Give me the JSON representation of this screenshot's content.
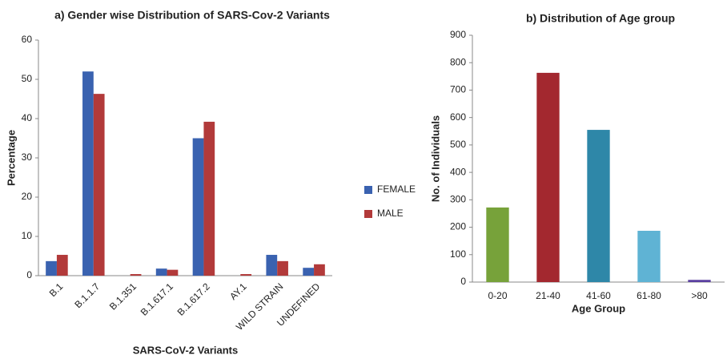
{
  "chart_data": [
    {
      "type": "bar",
      "title": "a) Gender wise Distribution of SARS-Cov-2 Variants",
      "x_label": "SARS-CoV-2 Variants",
      "y_label": "Percentage",
      "categories": [
        "B.1",
        "B.1.1.7",
        "B.1.351",
        "B.1.617.1",
        "B.1.617.2",
        "AY.1",
        "WILD STRAIN",
        "UNDEFINED"
      ],
      "series": [
        {
          "name": "FEMALE",
          "color": "#3a62b0",
          "values": [
            3.7,
            52,
            0,
            1.8,
            35,
            0,
            5.3,
            2
          ]
        },
        {
          "name": "MALE",
          "color": "#b23a3a",
          "values": [
            5.3,
            46.3,
            0.4,
            1.5,
            39.2,
            0.4,
            3.7,
            2.9
          ]
        }
      ],
      "ylim": [
        0,
        60
      ],
      "yticks": [
        0,
        10,
        20,
        30,
        40,
        50,
        60
      ],
      "legend": "right"
    },
    {
      "type": "bar",
      "title": "b) Distribution of Age group",
      "x_label": "Age Group",
      "y_label": "No. of Individuals",
      "categories": [
        "0-20",
        "21-40",
        "41-60",
        "61-80",
        ">80"
      ],
      "values": [
        272,
        763,
        555,
        187,
        8
      ],
      "colors": [
        "#77a23a",
        "#a3282f",
        "#2e87a8",
        "#5fb3d4",
        "#5a3fa0"
      ],
      "ylim": [
        0,
        900
      ],
      "yticks": [
        0,
        100,
        200,
        300,
        400,
        500,
        600,
        700,
        800,
        900
      ]
    }
  ]
}
